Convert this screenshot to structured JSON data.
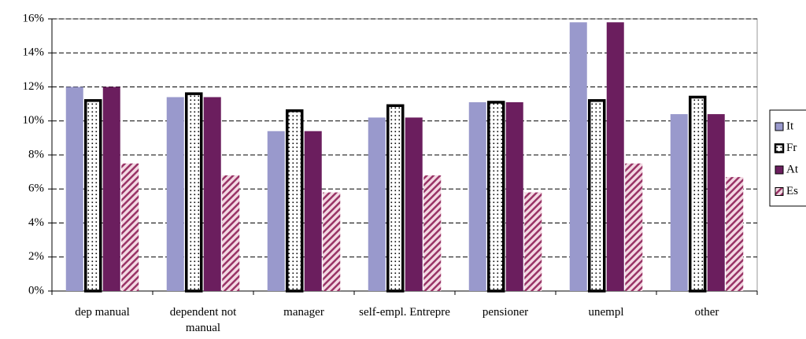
{
  "chart_data": {
    "type": "bar",
    "categories": [
      "dep manual",
      "dependent not manual",
      "manager",
      "self-empl. Entrepre",
      "pensioner",
      "unempl",
      "other"
    ],
    "series": [
      {
        "name": "It",
        "color": "#9999cc",
        "pattern": "solid",
        "values": [
          12.0,
          11.4,
          9.4,
          10.2,
          11.1,
          15.8,
          10.4
        ]
      },
      {
        "name": "Fr",
        "color": "#000000",
        "pattern": "dots",
        "values": [
          11.2,
          11.6,
          10.6,
          10.9,
          11.1,
          11.2,
          11.4
        ]
      },
      {
        "name": "At",
        "color": "#6b1e5e",
        "pattern": "solid",
        "values": [
          12.0,
          11.4,
          9.4,
          10.2,
          11.1,
          15.8,
          10.4
        ]
      },
      {
        "name": "Es",
        "color": "#993366",
        "pattern": "hatch",
        "values": [
          7.5,
          6.8,
          5.8,
          6.8,
          5.8,
          7.5,
          6.7
        ]
      }
    ],
    "ylim": [
      0,
      16
    ],
    "yticks": [
      {
        "value": 0,
        "label": "0%"
      },
      {
        "value": 2,
        "label": "2%"
      },
      {
        "value": 4,
        "label": "4%"
      },
      {
        "value": 6,
        "label": "6%"
      },
      {
        "value": 8,
        "label": "8%"
      },
      {
        "value": 10,
        "label": "10%"
      },
      {
        "value": 12,
        "label": "12%"
      },
      {
        "value": 14,
        "label": "14%"
      },
      {
        "value": 16,
        "label": "16%"
      }
    ],
    "grid": true,
    "legend": "right"
  }
}
